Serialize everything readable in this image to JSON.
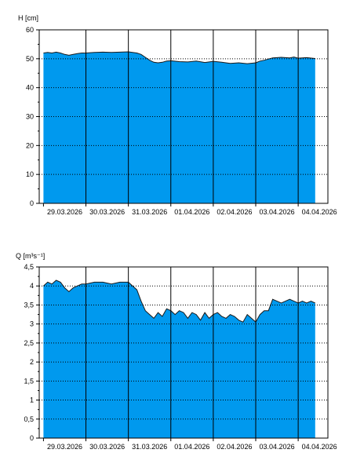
{
  "chart_data": [
    {
      "type": "area",
      "ylabel": "H [cm]",
      "ylim": [
        0,
        60
      ],
      "y_ticks": [
        0,
        10,
        20,
        30,
        40,
        50,
        60
      ],
      "y_tick_labels": [
        "0",
        "10",
        "20",
        "30",
        "40",
        "50",
        "60"
      ],
      "x_range_days": [
        -0.1,
        6.7
      ],
      "x_day_labels": [
        "29.03.2026",
        "30.03.2026",
        "31.03.2026",
        "01.04.2026",
        "02.04.2026",
        "03.04.2026",
        "04.04.2026"
      ],
      "fill_color": "#0099ee",
      "grid": "vertical solid lines at midnight, horizontal dotted lines at ticks",
      "series": [
        {
          "x": [
            0.0,
            0.1,
            0.2,
            0.3,
            0.4,
            0.5,
            0.6,
            0.7,
            0.8,
            0.9,
            1.0,
            1.2,
            1.4,
            1.6,
            1.8,
            2.0,
            2.2,
            2.3,
            2.4,
            2.5,
            2.6,
            2.7,
            2.8,
            2.9,
            3.0,
            3.2,
            3.4,
            3.6,
            3.8,
            4.0,
            4.2,
            4.4,
            4.6,
            4.8,
            5.0,
            5.1,
            5.2,
            5.4,
            5.6,
            5.8,
            5.9,
            6.0,
            6.2,
            6.4
          ],
          "values": [
            52.0,
            52.2,
            52.0,
            52.3,
            52.0,
            51.5,
            51.2,
            51.5,
            51.8,
            52.0,
            52.0,
            52.2,
            52.3,
            52.2,
            52.3,
            52.4,
            52.0,
            51.5,
            50.5,
            49.5,
            48.8,
            48.6,
            48.8,
            49.2,
            49.3,
            49.0,
            48.9,
            49.2,
            48.7,
            49.1,
            48.8,
            48.4,
            48.6,
            48.3,
            48.6,
            49.2,
            49.5,
            50.3,
            50.5,
            50.3,
            50.6,
            50.2,
            50.4,
            50.1
          ]
        }
      ]
    },
    {
      "type": "area",
      "ylabel": "Q [m³s⁻¹]",
      "ylim": [
        0,
        4.5
      ],
      "y_ticks": [
        0,
        0.5,
        1,
        1.5,
        2,
        2.5,
        3,
        3.5,
        4,
        4.5
      ],
      "y_tick_labels": [
        "0",
        "0,5",
        "1",
        "1,5",
        "2",
        "2,5",
        "3",
        "3,5",
        "4",
        "4,5"
      ],
      "x_range_days": [
        -0.1,
        6.7
      ],
      "x_day_labels": [
        "29.03.2026",
        "30.03.2026",
        "31.03.2026",
        "01.04.2026",
        "02.04.2026",
        "03.04.2026",
        "04.04.2026"
      ],
      "fill_color": "#0099ee",
      "grid": "vertical solid lines at midnight, horizontal dotted lines at ticks",
      "series": [
        {
          "x": [
            0.0,
            0.1,
            0.2,
            0.3,
            0.4,
            0.5,
            0.6,
            0.7,
            0.8,
            0.9,
            1.0,
            1.2,
            1.4,
            1.6,
            1.8,
            2.0,
            2.2,
            2.3,
            2.4,
            2.5,
            2.6,
            2.7,
            2.8,
            2.9,
            3.0,
            3.1,
            3.2,
            3.3,
            3.4,
            3.5,
            3.6,
            3.7,
            3.8,
            3.9,
            4.0,
            4.1,
            4.2,
            4.3,
            4.4,
            4.5,
            4.6,
            4.7,
            4.8,
            4.9,
            5.0,
            5.1,
            5.2,
            5.3,
            5.4,
            5.5,
            5.6,
            5.7,
            5.8,
            5.9,
            6.0,
            6.1,
            6.2,
            6.3,
            6.4
          ],
          "values": [
            4.0,
            4.1,
            4.05,
            4.15,
            4.1,
            3.95,
            3.85,
            3.95,
            4.0,
            4.05,
            4.05,
            4.1,
            4.1,
            4.05,
            4.1,
            4.1,
            3.9,
            3.6,
            3.35,
            3.25,
            3.15,
            3.3,
            3.2,
            3.4,
            3.35,
            3.25,
            3.35,
            3.3,
            3.15,
            3.3,
            3.25,
            3.1,
            3.3,
            3.15,
            3.25,
            3.3,
            3.2,
            3.15,
            3.25,
            3.2,
            3.1,
            3.05,
            3.25,
            3.15,
            3.05,
            3.25,
            3.35,
            3.35,
            3.65,
            3.6,
            3.55,
            3.6,
            3.65,
            3.6,
            3.55,
            3.6,
            3.55,
            3.6,
            3.55
          ]
        }
      ]
    }
  ]
}
